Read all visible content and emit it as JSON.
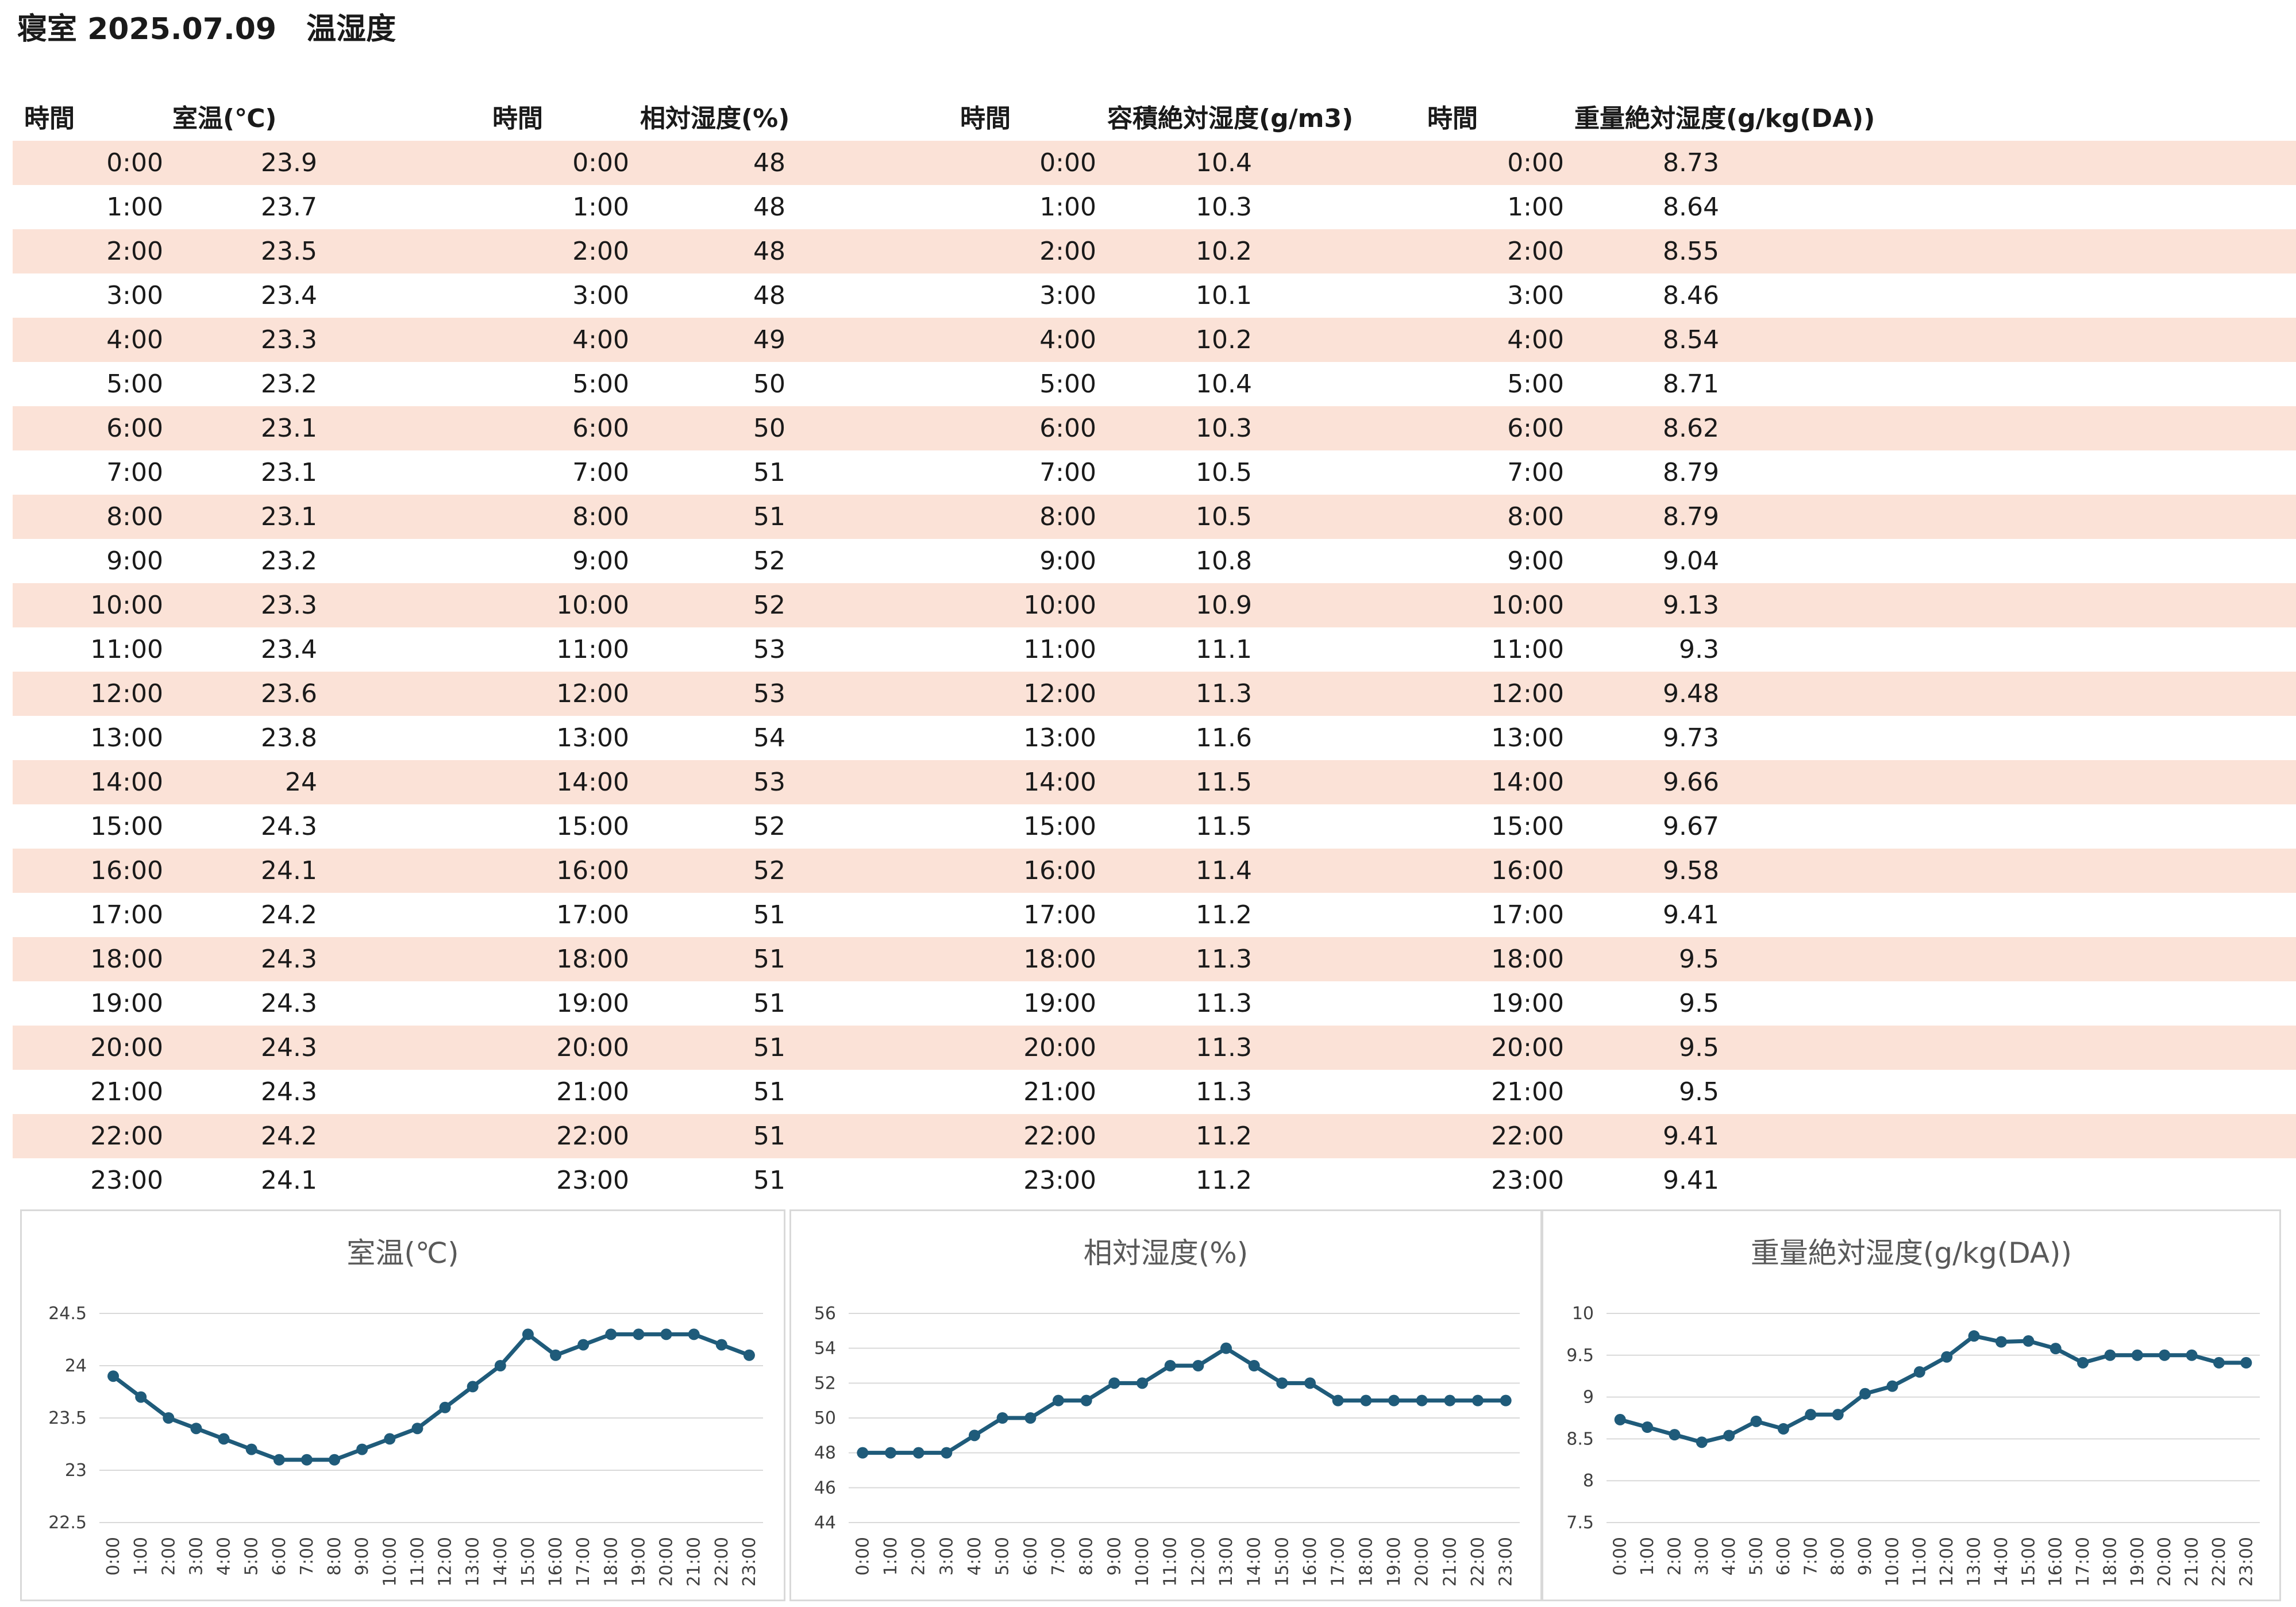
{
  "title": "寝室 2025.07.09　温湿度",
  "headers": {
    "time1": "時間",
    "temp": "室温(℃)",
    "time2": "時間",
    "rh": "相対湿度(%)",
    "time3": "時間",
    "vah": "容積絶対湿度(g/m3)",
    "time4": "時間",
    "mah": "重量絶対湿度(g/kg(DA))"
  },
  "rows": [
    {
      "time": "0:00",
      "temp": "23.9",
      "rh": "48",
      "vah": "10.4",
      "mah": "8.73"
    },
    {
      "time": "1:00",
      "temp": "23.7",
      "rh": "48",
      "vah": "10.3",
      "mah": "8.64"
    },
    {
      "time": "2:00",
      "temp": "23.5",
      "rh": "48",
      "vah": "10.2",
      "mah": "8.55"
    },
    {
      "time": "3:00",
      "temp": "23.4",
      "rh": "48",
      "vah": "10.1",
      "mah": "8.46"
    },
    {
      "time": "4:00",
      "temp": "23.3",
      "rh": "49",
      "vah": "10.2",
      "mah": "8.54"
    },
    {
      "time": "5:00",
      "temp": "23.2",
      "rh": "50",
      "vah": "10.4",
      "mah": "8.71"
    },
    {
      "time": "6:00",
      "temp": "23.1",
      "rh": "50",
      "vah": "10.3",
      "mah": "8.62"
    },
    {
      "time": "7:00",
      "temp": "23.1",
      "rh": "51",
      "vah": "10.5",
      "mah": "8.79"
    },
    {
      "time": "8:00",
      "temp": "23.1",
      "rh": "51",
      "vah": "10.5",
      "mah": "8.79"
    },
    {
      "time": "9:00",
      "temp": "23.2",
      "rh": "52",
      "vah": "10.8",
      "mah": "9.04"
    },
    {
      "time": "10:00",
      "temp": "23.3",
      "rh": "52",
      "vah": "10.9",
      "mah": "9.13"
    },
    {
      "time": "11:00",
      "temp": "23.4",
      "rh": "53",
      "vah": "11.1",
      "mah": "9.3"
    },
    {
      "time": "12:00",
      "temp": "23.6",
      "rh": "53",
      "vah": "11.3",
      "mah": "9.48"
    },
    {
      "time": "13:00",
      "temp": "23.8",
      "rh": "54",
      "vah": "11.6",
      "mah": "9.73"
    },
    {
      "time": "14:00",
      "temp": "24",
      "rh": "53",
      "vah": "11.5",
      "mah": "9.66"
    },
    {
      "time": "15:00",
      "temp": "24.3",
      "rh": "52",
      "vah": "11.5",
      "mah": "9.67"
    },
    {
      "time": "16:00",
      "temp": "24.1",
      "rh": "52",
      "vah": "11.4",
      "mah": "9.58"
    },
    {
      "time": "17:00",
      "temp": "24.2",
      "rh": "51",
      "vah": "11.2",
      "mah": "9.41"
    },
    {
      "time": "18:00",
      "temp": "24.3",
      "rh": "51",
      "vah": "11.3",
      "mah": "9.5"
    },
    {
      "time": "19:00",
      "temp": "24.3",
      "rh": "51",
      "vah": "11.3",
      "mah": "9.5"
    },
    {
      "time": "20:00",
      "temp": "24.3",
      "rh": "51",
      "vah": "11.3",
      "mah": "9.5"
    },
    {
      "time": "21:00",
      "temp": "24.3",
      "rh": "51",
      "vah": "11.3",
      "mah": "9.5"
    },
    {
      "time": "22:00",
      "temp": "24.2",
      "rh": "51",
      "vah": "11.2",
      "mah": "9.41"
    },
    {
      "time": "23:00",
      "temp": "24.1",
      "rh": "51",
      "vah": "11.2",
      "mah": "9.41"
    }
  ],
  "colors": {
    "row_band": "#fbe2d7",
    "series": "#1f5b7a",
    "grid": "#d9d9d9"
  },
  "chart_data": [
    {
      "type": "line",
      "title": "室温(℃)",
      "categories": [
        "0:00",
        "1:00",
        "2:00",
        "3:00",
        "4:00",
        "5:00",
        "6:00",
        "7:00",
        "8:00",
        "9:00",
        "10:00",
        "11:00",
        "12:00",
        "13:00",
        "14:00",
        "15:00",
        "16:00",
        "17:00",
        "18:00",
        "19:00",
        "20:00",
        "21:00",
        "22:00",
        "23:00"
      ],
      "values": [
        23.9,
        23.7,
        23.5,
        23.4,
        23.3,
        23.2,
        23.1,
        23.1,
        23.1,
        23.2,
        23.3,
        23.4,
        23.6,
        23.8,
        24,
        24.3,
        24.1,
        24.2,
        24.3,
        24.3,
        24.3,
        24.3,
        24.2,
        24.1
      ],
      "ylim": [
        22.5,
        24.5
      ],
      "yticks": [
        "24.5",
        "24",
        "23.5",
        "23",
        "22.5"
      ],
      "grid": true
    },
    {
      "type": "line",
      "title": "相対湿度(%)",
      "categories": [
        "0:00",
        "1:00",
        "2:00",
        "3:00",
        "4:00",
        "5:00",
        "6:00",
        "7:00",
        "8:00",
        "9:00",
        "10:00",
        "11:00",
        "12:00",
        "13:00",
        "14:00",
        "15:00",
        "16:00",
        "17:00",
        "18:00",
        "19:00",
        "20:00",
        "21:00",
        "22:00",
        "23:00"
      ],
      "values": [
        48,
        48,
        48,
        48,
        49,
        50,
        50,
        51,
        51,
        52,
        52,
        53,
        53,
        54,
        53,
        52,
        52,
        51,
        51,
        51,
        51,
        51,
        51,
        51
      ],
      "ylim": [
        44,
        56
      ],
      "yticks": [
        "56",
        "54",
        "52",
        "50",
        "48",
        "46",
        "44"
      ],
      "grid": true
    },
    {
      "type": "line",
      "title": "重量絶対湿度(g/kg(DA))",
      "categories": [
        "0:00",
        "1:00",
        "2:00",
        "3:00",
        "4:00",
        "5:00",
        "6:00",
        "7:00",
        "8:00",
        "9:00",
        "10:00",
        "11:00",
        "12:00",
        "13:00",
        "14:00",
        "15:00",
        "16:00",
        "17:00",
        "18:00",
        "19:00",
        "20:00",
        "21:00",
        "22:00",
        "23:00"
      ],
      "values": [
        8.73,
        8.64,
        8.55,
        8.46,
        8.54,
        8.71,
        8.62,
        8.79,
        8.79,
        9.04,
        9.13,
        9.3,
        9.48,
        9.73,
        9.66,
        9.67,
        9.58,
        9.41,
        9.5,
        9.5,
        9.5,
        9.5,
        9.41,
        9.41
      ],
      "ylim": [
        7.5,
        10
      ],
      "yticks": [
        "10",
        "9.5",
        "9",
        "8.5",
        "8",
        "7.5"
      ],
      "grid": true
    }
  ]
}
